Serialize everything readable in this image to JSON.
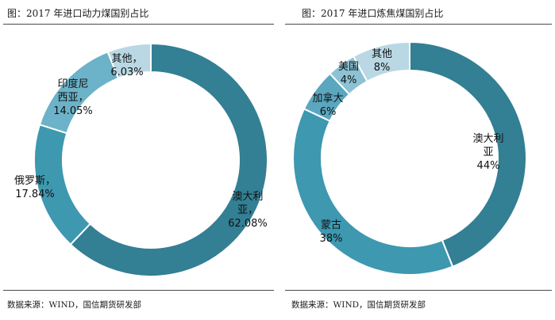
{
  "chart_data": [
    {
      "type": "pie",
      "title": "图：2017 年进口动力煤国别占比",
      "source": "数据来源：WIND，国信期货研发部",
      "slices": [
        {
          "name": "澳大利亚",
          "value": 62.08,
          "label": [
            "澳大利",
            "亚，",
            "62.08%"
          ]
        },
        {
          "name": "俄罗斯",
          "value": 17.84,
          "label": [
            "俄罗斯，",
            "17.84%"
          ]
        },
        {
          "name": "印度尼西亚",
          "value": 14.05,
          "label": [
            "印度尼",
            "西亚，",
            "14.05%"
          ]
        },
        {
          "name": "其他",
          "value": 6.03,
          "label": [
            "其他，",
            "6.03%"
          ]
        }
      ],
      "colors": [
        "#337f94",
        "#3e98b0",
        "#6cb2c8",
        "#b9d8e4"
      ]
    },
    {
      "type": "pie",
      "title": "图：2017 年进口炼焦煤国别占比",
      "source": "数据来源：WIND，国信期货研发部",
      "slices": [
        {
          "name": "澳大利亚",
          "value": 44,
          "label": [
            "澳大利",
            "亚",
            "44%"
          ]
        },
        {
          "name": "蒙古",
          "value": 38,
          "label": [
            "蒙古",
            "38%"
          ]
        },
        {
          "name": "加拿大",
          "value": 6,
          "label": [
            "加拿大",
            "6%"
          ]
        },
        {
          "name": "美国",
          "value": 4,
          "label": [
            "美国",
            "4%"
          ]
        },
        {
          "name": "其他",
          "value": 8,
          "label": [
            "其他",
            "8%"
          ]
        }
      ],
      "colors": [
        "#337f94",
        "#3e98b0",
        "#5aa7bf",
        "#8cc2d4",
        "#b9d8e4"
      ]
    }
  ]
}
